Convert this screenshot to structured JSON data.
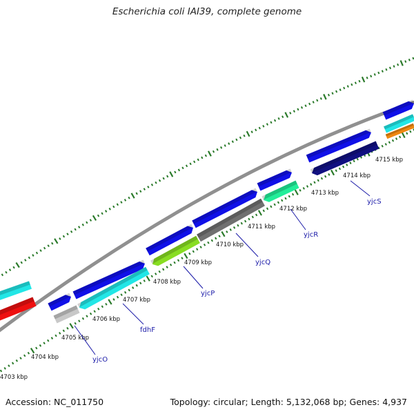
{
  "title": "Escherichia coli IAI39, complete genome",
  "footer": {
    "accession": "Accession: NC_011750",
    "topology": "Topology: circular; Length: 5,132,068 bp; Genes: 4,937"
  },
  "kbp_labels": [
    "4703 kbp",
    "4704 kbp",
    "4705 kbp",
    "4706 kbp",
    "4707 kbp",
    "4708 kbp",
    "4709 kbp",
    "4710 kbp",
    "4711 kbp",
    "4712 kbp",
    "4713 kbp",
    "4714 kbp",
    "4715 kbp"
  ],
  "gene_labels": [
    "yjcO",
    "fdhF",
    "yjcP",
    "yjcQ",
    "yjcR",
    "yjcS"
  ],
  "colors": {
    "forward_gene": "#1010e8",
    "reverse_cyan": "#22e6e6",
    "red": "#ee1010",
    "grey_gene": "#c8c8c8",
    "lime": "#88dd22",
    "dark_grey": "#707070",
    "spring_green": "#22ee99",
    "navy": "#101080",
    "orange": "#ee8810",
    "backbone": "#909090",
    "tick": "#2a7a2a",
    "gene_label": "#1a1aa8"
  }
}
